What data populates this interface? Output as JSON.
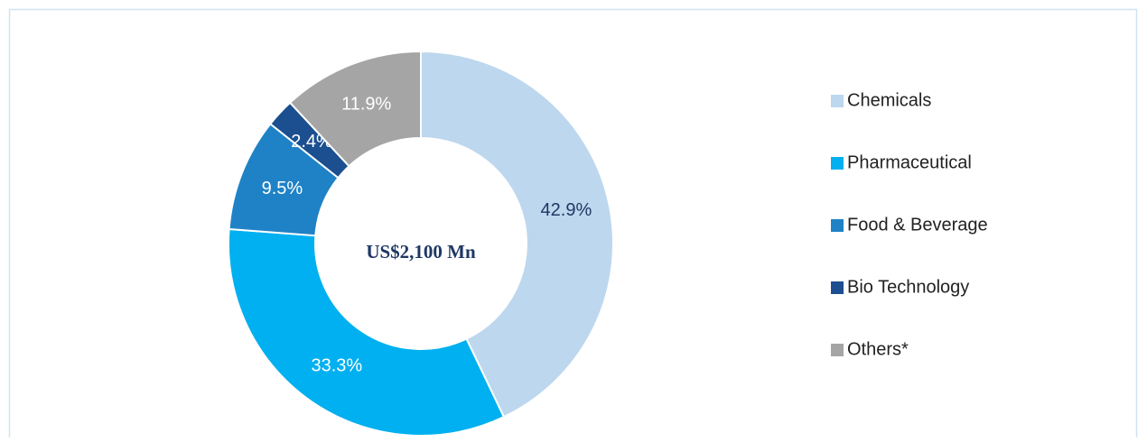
{
  "chart_data": {
    "type": "donut",
    "center_label": "US$2,100 Mn",
    "categories": [
      "Chemicals",
      "Pharmaceutical",
      "Food & Beverage",
      "Bio Technology",
      "Others*"
    ],
    "values": [
      42.9,
      33.3,
      9.5,
      2.4,
      11.9
    ],
    "value_labels": [
      "42.9%",
      "33.3%",
      "9.5%",
      "2.4%",
      "11.9%"
    ],
    "colors": [
      "#bdd7ee",
      "#00b0f0",
      "#1f82c6",
      "#1b4f8f",
      "#a5a5a5"
    ],
    "legend": "right"
  }
}
